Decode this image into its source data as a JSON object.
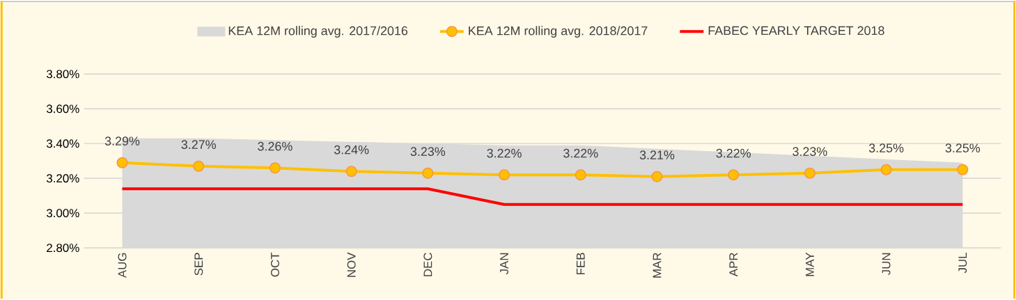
{
  "chart_data": {
    "type": "line",
    "categories": [
      "AUG",
      "SEP",
      "OCT",
      "NOV",
      "DEC",
      "JAN",
      "FEB",
      "MAR",
      "APR",
      "MAY",
      "JUN",
      "JUL"
    ],
    "series": [
      {
        "name": "KEA 12M rolling avg. 2017/2016",
        "type": "area",
        "color": "#d9d9d9",
        "values": [
          3.43,
          3.43,
          3.42,
          3.41,
          3.4,
          3.39,
          3.39,
          3.37,
          3.35,
          3.33,
          3.31,
          3.29
        ]
      },
      {
        "name": "KEA 12M rolling avg. 2018/2017",
        "color": "#ffc000",
        "marker": "circle",
        "values": [
          3.29,
          3.27,
          3.26,
          3.24,
          3.23,
          3.22,
          3.22,
          3.21,
          3.22,
          3.23,
          3.25,
          3.25
        ],
        "value_labels": [
          "3.29%",
          "3.27%",
          "3.26%",
          "3.24%",
          "3.23%",
          "3.22%",
          "3.22%",
          "3.21%",
          "3.22%",
          "3.23%",
          "3.25%",
          "3.25%"
        ]
      },
      {
        "name": "FABEC YEARLY TARGET 2018",
        "color": "#ff0000",
        "values": [
          3.14,
          3.14,
          3.14,
          3.14,
          3.14,
          3.05,
          3.05,
          3.05,
          3.05,
          3.05,
          3.05,
          3.05
        ]
      }
    ],
    "ylim": [
      2.8,
      3.8
    ],
    "yticks": [
      {
        "value": 2.8,
        "label": "2.80%"
      },
      {
        "value": 3.0,
        "label": "3.00%"
      },
      {
        "value": 3.2,
        "label": "3.20%"
      },
      {
        "value": 3.4,
        "label": "3.40%"
      },
      {
        "value": 3.6,
        "label": "3.60%"
      },
      {
        "value": 3.8,
        "label": "3.80%"
      }
    ],
    "grid": "y",
    "legend": "top"
  }
}
